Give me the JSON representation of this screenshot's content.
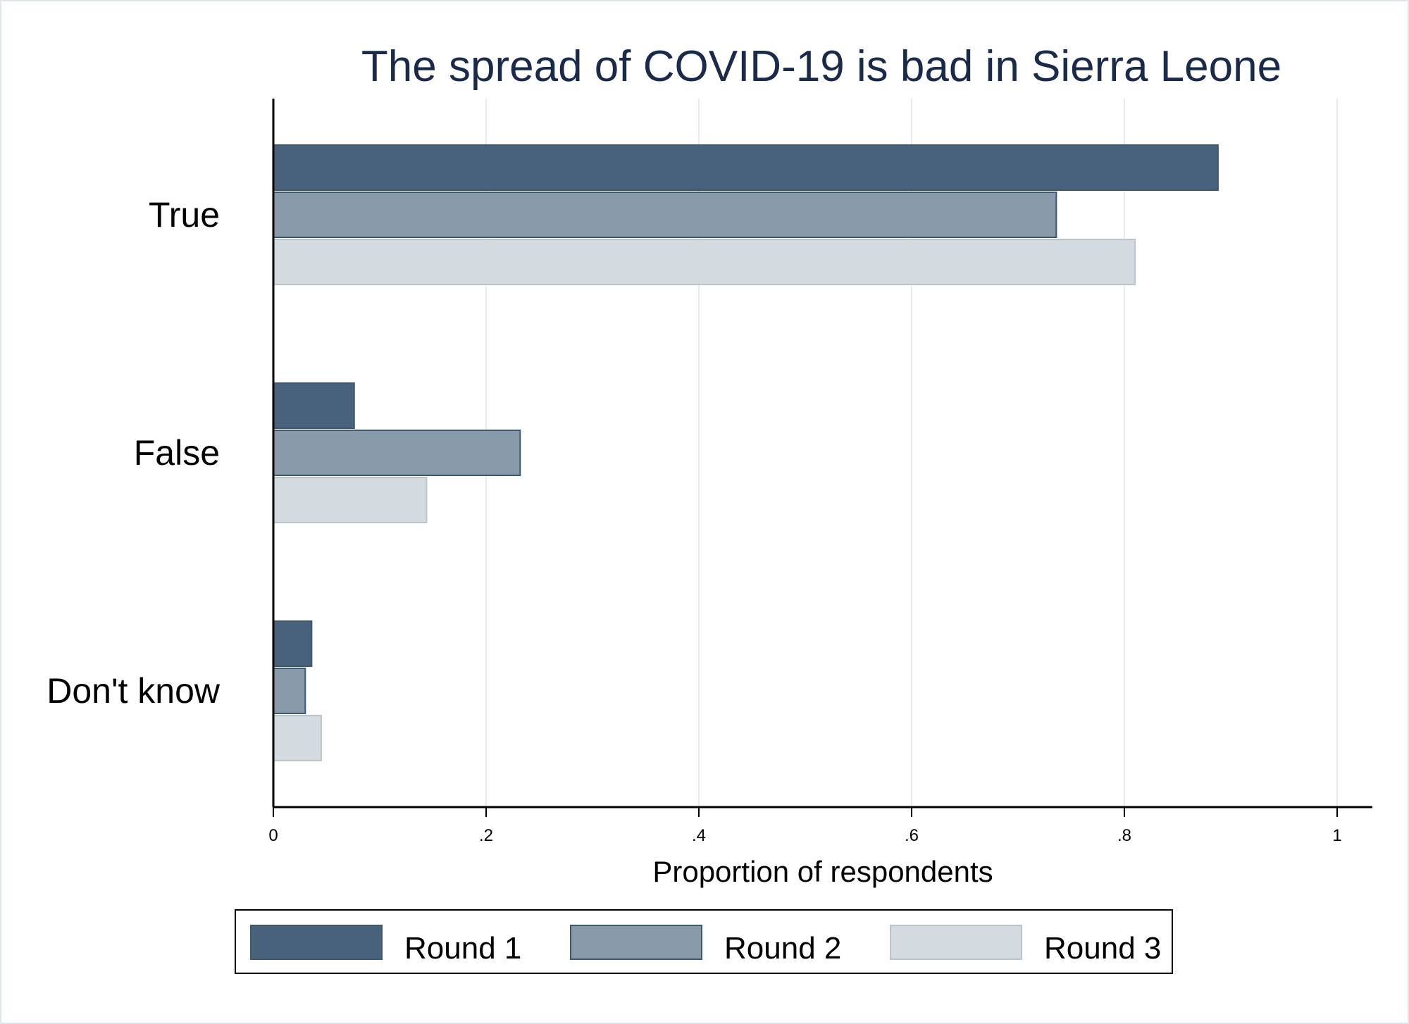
{
  "chart_data": {
    "type": "bar",
    "orientation": "horizontal",
    "title": "The spread of COVID-19 is bad in Sierra Leone",
    "xlabel": "Proportion of respondents",
    "ylabel": "",
    "xlim": [
      0,
      1.03
    ],
    "xticks": [
      0,
      0.2,
      0.4,
      0.6,
      0.8,
      1
    ],
    "xtick_labels": [
      "0",
      ".2",
      ".4",
      ".6",
      ".8",
      "1"
    ],
    "categories": [
      "True",
      "False",
      "Don't know"
    ],
    "series": [
      {
        "name": "Round 1",
        "color": "#48627b",
        "values": [
          0.888,
          0.076,
          0.036
        ]
      },
      {
        "name": "Round 2",
        "color": "#889aa9",
        "values": [
          0.736,
          0.232,
          0.03
        ]
      },
      {
        "name": "Round 3",
        "color": "#d3dae0",
        "values": [
          0.81,
          0.144,
          0.045
        ]
      }
    ],
    "grid": "vertical",
    "legend_position": "bottom"
  }
}
